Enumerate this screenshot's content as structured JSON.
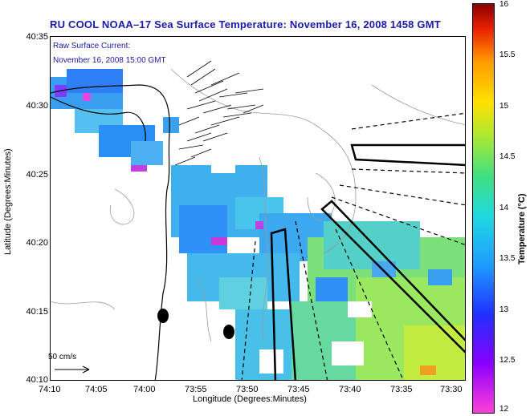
{
  "title": "RU COOL  NOAA–17  Sea Surface Temperature:  November 16, 2008 1458 GMT",
  "current_legend": {
    "line1": "Raw Surface Current:",
    "line2": "November 16, 2008 15:00 GMT"
  },
  "axes": {
    "xlabel": "Longitude (Degrees:Minutes)",
    "ylabel": "Latitude (Degrees:Minutes)",
    "xticks": [
      "74:10",
      "74:05",
      "74:00",
      "73:55",
      "73:50",
      "73:45",
      "73:40",
      "73:35",
      "73:30"
    ],
    "yticks": [
      "40:35",
      "40:30",
      "40:25",
      "40:20",
      "40:15",
      "40:10"
    ]
  },
  "scale_label": "50 cm/s",
  "colorbar": {
    "label": "Temperature (°C)",
    "ticks": [
      "16",
      "15.5",
      "15",
      "14.5",
      "14",
      "13.5",
      "13",
      "12.5",
      "12"
    ]
  },
  "colors": {
    "title": "#1a1aa8",
    "legend": "#1a1aa8"
  }
}
